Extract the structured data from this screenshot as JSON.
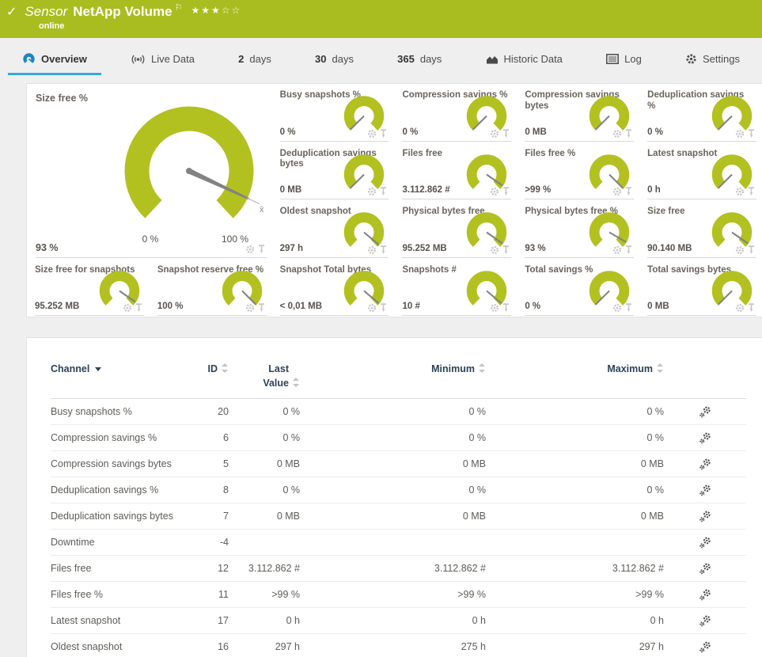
{
  "header": {
    "check_icon": "✓",
    "sensor_label": "Sensor",
    "title": "NetApp Volume",
    "flag_icon": "⚐",
    "rating": "★★★☆☆",
    "status": "online",
    "accent_color": "#a9bd20"
  },
  "tabs": {
    "overview": "Overview",
    "live_data": "Live Data",
    "d2_num": "2",
    "d2_label": "days",
    "d30_num": "30",
    "d30_label": "days",
    "d365_num": "365",
    "d365_label": "days",
    "historic": "Historic Data",
    "log": "Log",
    "settings": "Settings"
  },
  "main_gauge": {
    "title": "Size free %",
    "value": "93 %",
    "min_label": "0 %",
    "max_label": "100 %",
    "needle_rot": -65,
    "mean_marker": "x̄"
  },
  "gauge_colors": {
    "arc": "#b2c120",
    "needle": "#828282"
  },
  "gauges": [
    {
      "title": "Busy snapshots %",
      "value": "0 %",
      "needle_rot": 45
    },
    {
      "title": "Compression savings %",
      "value": "0 %",
      "needle_rot": 45
    },
    {
      "title": "Compression savings bytes",
      "value": "0 MB",
      "needle_rot": 45
    },
    {
      "title": "Deduplication savings %",
      "value": "0 %",
      "needle_rot": 45
    },
    {
      "title": "Deduplication savings bytes",
      "value": "0 MB",
      "needle_rot": 45
    },
    {
      "title": "Files free",
      "value": "3.112.862 #",
      "needle_rot": -55
    },
    {
      "title": "Files free %",
      "value": ">99 %",
      "needle_rot": -45
    },
    {
      "title": "Latest snapshot",
      "value": "0 h",
      "needle_rot": 45
    },
    {
      "title": "Oldest snapshot",
      "value": "297 h",
      "needle_rot": -50
    },
    {
      "title": "Physical bytes free",
      "value": "95.252 MB",
      "needle_rot": -55
    },
    {
      "title": "Physical bytes free %",
      "value": "93 %",
      "needle_rot": -60
    },
    {
      "title": "Size free",
      "value": "90.140 MB",
      "needle_rot": -55
    },
    {
      "title": "Size free for snapshots",
      "value": "95.252 MB",
      "needle_rot": -55
    },
    {
      "title": "Snapshot reserve free %",
      "value": "100 %",
      "needle_rot": -45
    },
    {
      "title": "Snapshot Total bytes",
      "value": "< 0,01 MB",
      "needle_rot": -50
    },
    {
      "title": "Snapshots #",
      "value": "10 #",
      "needle_rot": -50
    },
    {
      "title": "Total savings %",
      "value": "0 %",
      "needle_rot": 45
    },
    {
      "title": "Total savings bytes",
      "value": "0 MB",
      "needle_rot": 45
    }
  ],
  "table": {
    "headers": {
      "channel": "Channel",
      "id": "ID",
      "last_value": "Last Value",
      "minimum": "Minimum",
      "maximum": "Maximum"
    },
    "rows": [
      {
        "name": "Busy snapshots %",
        "id": "20",
        "last": "0 %",
        "min": "0 %",
        "max": "0 %"
      },
      {
        "name": "Compression savings %",
        "id": "6",
        "last": "0 %",
        "min": "0 %",
        "max": "0 %"
      },
      {
        "name": "Compression savings bytes",
        "id": "5",
        "last": "0 MB",
        "min": "0 MB",
        "max": "0 MB"
      },
      {
        "name": "Deduplication savings %",
        "id": "8",
        "last": "0 %",
        "min": "0 %",
        "max": "0 %"
      },
      {
        "name": "Deduplication savings bytes",
        "id": "7",
        "last": "0 MB",
        "min": "0 MB",
        "max": "0 MB"
      },
      {
        "name": "Downtime",
        "id": "-4",
        "last": "",
        "min": "",
        "max": ""
      },
      {
        "name": "Files free",
        "id": "12",
        "last": "3.112.862 #",
        "min": "3.112.862 #",
        "max": "3.112.862 #"
      },
      {
        "name": "Files free %",
        "id": "11",
        "last": ">99 %",
        "min": ">99 %",
        "max": ">99 %"
      },
      {
        "name": "Latest snapshot",
        "id": "17",
        "last": "0 h",
        "min": "0 h",
        "max": "0 h"
      },
      {
        "name": "Oldest snapshot",
        "id": "16",
        "last": "297 h",
        "min": "275 h",
        "max": "297 h"
      }
    ]
  }
}
